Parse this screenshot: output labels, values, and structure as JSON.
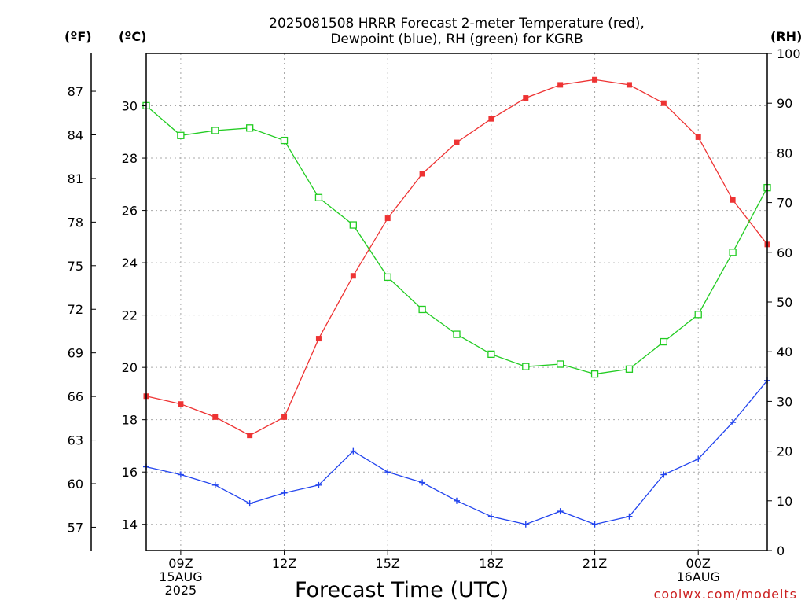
{
  "chart_data": {
    "type": "line",
    "title_line1": "2025081508 HRRR Forecast 2-meter Temperature (red),",
    "title_line2": "Dewpoint (blue), RH (green) for KGRB",
    "xlabel": "Forecast Time (UTC)",
    "credit": "coolwx.com/modelts",
    "units": {
      "fahrenheit": "(ºF)",
      "celsius": "(ºC)",
      "rh": "(RH)"
    },
    "x_hours": [
      8,
      9,
      10,
      11,
      12,
      13,
      14,
      15,
      16,
      17,
      18,
      19,
      20,
      21,
      22,
      23,
      24,
      25,
      26
    ],
    "xlim": [
      8,
      26
    ],
    "x_ticks": [
      {
        "hour": 9,
        "lines": [
          "09Z",
          "15AUG",
          "2025"
        ]
      },
      {
        "hour": 12,
        "lines": [
          "12Z"
        ]
      },
      {
        "hour": 15,
        "lines": [
          "15Z"
        ]
      },
      {
        "hour": 18,
        "lines": [
          "18Z"
        ]
      },
      {
        "hour": 21,
        "lines": [
          "21Z"
        ]
      },
      {
        "hour": 24,
        "lines": [
          "00Z",
          "16AUG"
        ]
      }
    ],
    "y_celsius": {
      "lim": [
        13.0,
        32.0
      ],
      "ticks": [
        "14",
        "16",
        "18",
        "20",
        "22",
        "24",
        "26",
        "28",
        "30"
      ]
    },
    "y_fahrenheit": {
      "ticks": [
        "57",
        "60",
        "63",
        "66",
        "69",
        "72",
        "75",
        "78",
        "81",
        "84",
        "87"
      ]
    },
    "y_rh": {
      "lim": [
        0,
        100
      ],
      "ticks": [
        "0",
        "10",
        "20",
        "30",
        "40",
        "50",
        "60",
        "70",
        "80",
        "90",
        "100"
      ]
    },
    "grid": true,
    "series": [
      {
        "name": "Temperature",
        "color": "#ee3333",
        "marker": "filled-square",
        "axis": "celsius",
        "values": [
          18.9,
          18.6,
          18.1,
          17.4,
          18.1,
          21.1,
          23.5,
          25.7,
          27.4,
          28.6,
          29.5,
          30.3,
          30.8,
          31.0,
          30.8,
          30.1,
          28.8,
          26.4,
          24.7
        ]
      },
      {
        "name": "Dewpoint",
        "color": "#2244ee",
        "marker": "plus",
        "axis": "celsius",
        "values": [
          16.2,
          15.9,
          15.5,
          14.8,
          15.2,
          15.5,
          16.8,
          16.0,
          15.6,
          14.9,
          14.3,
          14.0,
          14.5,
          14.0,
          14.3,
          15.9,
          16.5,
          17.9,
          19.5
        ]
      },
      {
        "name": "RH",
        "color": "#22cc22",
        "marker": "open-square",
        "axis": "rh",
        "values": [
          89.5,
          83.5,
          84.5,
          85.0,
          82.5,
          71.0,
          65.5,
          55.0,
          48.5,
          43.5,
          39.5,
          37.0,
          37.5,
          35.5,
          36.5,
          42.0,
          47.5,
          60.0,
          73.0
        ]
      }
    ]
  }
}
